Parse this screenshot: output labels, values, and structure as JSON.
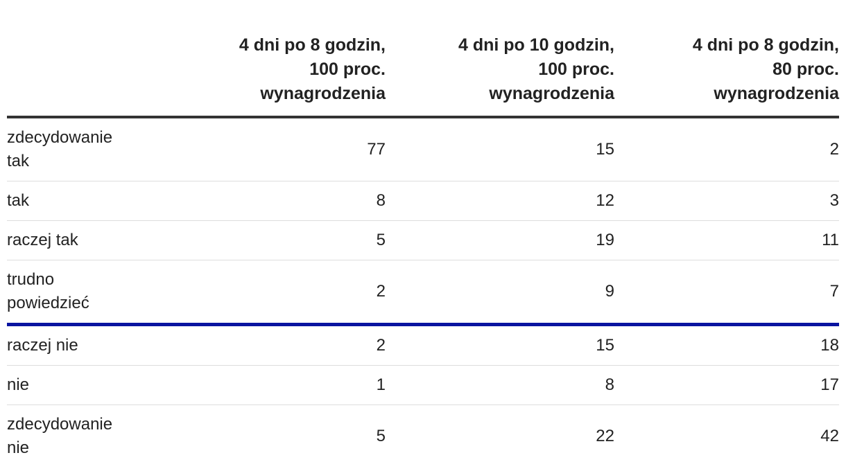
{
  "table": {
    "columns": [
      [
        "4 dni po 8 godzin,",
        "100 proc.",
        "wynagrodzenia"
      ],
      [
        "4 dni po 10 godzin,",
        "100 proc.",
        "wynagrodzenia"
      ],
      [
        "4 dni po 8 godzin,",
        "80 proc.",
        "wynagrodzenia"
      ]
    ],
    "rows": [
      {
        "label": "zdecydowanie tak",
        "values": [
          "77",
          "15",
          "2"
        ]
      },
      {
        "label": "tak",
        "values": [
          "8",
          "12",
          "3"
        ]
      },
      {
        "label": "raczej tak",
        "values": [
          "5",
          "19",
          "11"
        ]
      },
      {
        "label": "trudno powiedzieć",
        "values": [
          "2",
          "9",
          "7"
        ]
      },
      {
        "label": "raczej nie",
        "values": [
          "2",
          "15",
          "18"
        ]
      },
      {
        "label": "nie",
        "values": [
          "1",
          "8",
          "17"
        ]
      },
      {
        "label": "zdecydowanie nie",
        "values": [
          "5",
          "22",
          "42"
        ]
      }
    ]
  }
}
